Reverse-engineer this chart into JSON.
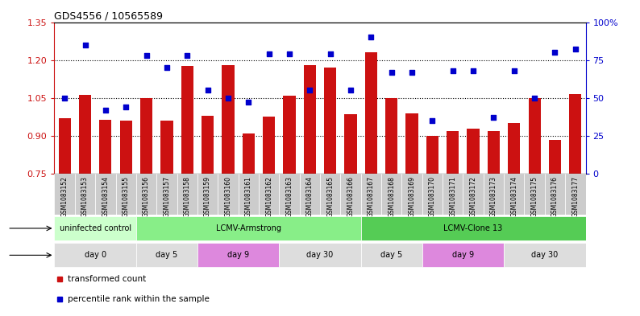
{
  "title": "GDS4556 / 10565589",
  "samples": [
    "GSM1083152",
    "GSM1083153",
    "GSM1083154",
    "GSM1083155",
    "GSM1083156",
    "GSM1083157",
    "GSM1083158",
    "GSM1083159",
    "GSM1083160",
    "GSM1083161",
    "GSM1083162",
    "GSM1083163",
    "GSM1083164",
    "GSM1083165",
    "GSM1083166",
    "GSM1083167",
    "GSM1083168",
    "GSM1083169",
    "GSM1083170",
    "GSM1083171",
    "GSM1083172",
    "GSM1083173",
    "GSM1083174",
    "GSM1083175",
    "GSM1083176",
    "GSM1083177"
  ],
  "bar_values": [
    0.97,
    1.063,
    0.965,
    0.96,
    1.05,
    0.96,
    1.178,
    0.98,
    1.18,
    0.91,
    0.975,
    1.06,
    1.18,
    1.17,
    0.985,
    1.23,
    1.05,
    0.99,
    0.9,
    0.92,
    0.93,
    0.92,
    0.95,
    1.05,
    0.885,
    1.065
  ],
  "blue_values": [
    50,
    85,
    42,
    44,
    78,
    70,
    78,
    55,
    50,
    47,
    79,
    79,
    55,
    79,
    55,
    90,
    67,
    67,
    35,
    68,
    68,
    37,
    68,
    50,
    80,
    82
  ],
  "ylim_left": [
    0.75,
    1.35
  ],
  "ylim_right": [
    0,
    100
  ],
  "yticks_left": [
    0.75,
    0.9,
    1.05,
    1.2,
    1.35
  ],
  "yticks_right": [
    0,
    25,
    50,
    75,
    100
  ],
  "ytick_labels_right": [
    "0",
    "25",
    "50",
    "75",
    "100%"
  ],
  "bar_color": "#CC1111",
  "dot_color": "#0000CC",
  "infection_groups": [
    {
      "label": "uninfected control",
      "start": 0,
      "end": 4,
      "color": "#CCFFCC"
    },
    {
      "label": "LCMV-Armstrong",
      "start": 4,
      "end": 15,
      "color": "#88EE88"
    },
    {
      "label": "LCMV-Clone 13",
      "start": 15,
      "end": 26,
      "color": "#55CC55"
    }
  ],
  "time_groups": [
    {
      "label": "day 0",
      "start": 0,
      "end": 4,
      "color": "#DDDDDD"
    },
    {
      "label": "day 5",
      "start": 4,
      "end": 7,
      "color": "#DDDDDD"
    },
    {
      "label": "day 9",
      "start": 7,
      "end": 11,
      "color": "#DD88DD"
    },
    {
      "label": "day 30",
      "start": 11,
      "end": 15,
      "color": "#DDDDDD"
    },
    {
      "label": "day 5",
      "start": 15,
      "end": 18,
      "color": "#DDDDDD"
    },
    {
      "label": "day 9",
      "start": 18,
      "end": 22,
      "color": "#DD88DD"
    },
    {
      "label": "day 30",
      "start": 22,
      "end": 26,
      "color": "#DDDDDD"
    }
  ],
  "legend_items": [
    {
      "color": "#CC1111",
      "label": "transformed count"
    },
    {
      "color": "#0000CC",
      "label": "percentile rank within the sample"
    }
  ],
  "bg_color": "#FFFFFF",
  "spine_color": "#000000",
  "grid_color": "#000000",
  "xticklabel_bg": "#CCCCCC"
}
